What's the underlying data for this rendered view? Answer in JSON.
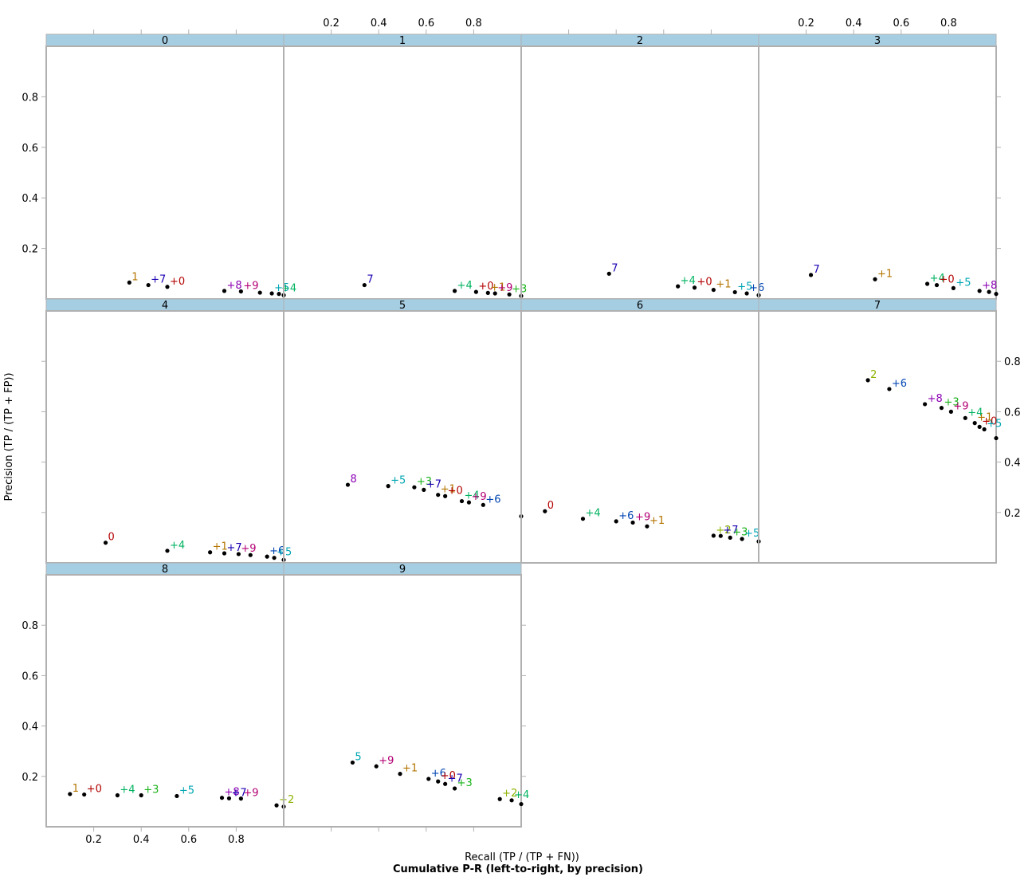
{
  "chart_data": {
    "type": "scatter",
    "title": "Cumulative P-R (left-to-right, by precision)",
    "xlabel": "Recall (TP / (TP + FN))",
    "ylabel": "Precision (TP / (TP + FP))",
    "xlim": [
      0,
      1
    ],
    "ylim": [
      0,
      1
    ],
    "x_ticks": [
      "0.2",
      "0.4",
      "0.6",
      "0.8"
    ],
    "y_ticks": [
      "0.2",
      "0.4",
      "0.6",
      "0.8"
    ],
    "grid": false,
    "legend": "none",
    "panel_strip_color": "#a6cee3",
    "label_colors": {
      "0": "#b30000",
      "1": "#b37400",
      "2": "#8cb300",
      "3": "#1ab31a",
      "4": "#00b360",
      "5": "#00a6b3",
      "6": "#0045b3",
      "7": "#1a00b3",
      "8": "#8c00b3",
      "9": "#b30074"
    },
    "panels": [
      {
        "name": "0",
        "points": [
          {
            "x": 0.35,
            "y": 0.065,
            "label": "1"
          },
          {
            "x": 0.43,
            "y": 0.055,
            "label": "+7"
          },
          {
            "x": 0.51,
            "y": 0.048,
            "label": "+0"
          },
          {
            "x": 0.75,
            "y": 0.032,
            "label": "+8"
          },
          {
            "x": 0.82,
            "y": 0.03,
            "label": "+9"
          },
          {
            "x": 0.9,
            "y": 0.025,
            "label": ""
          },
          {
            "x": 0.95,
            "y": 0.022,
            "label": "+5"
          },
          {
            "x": 0.98,
            "y": 0.02,
            "label": "+4"
          },
          {
            "x": 1.0,
            "y": 0.015,
            "label": ""
          }
        ]
      },
      {
        "name": "1",
        "points": [
          {
            "x": 0.34,
            "y": 0.055,
            "label": "7"
          },
          {
            "x": 0.72,
            "y": 0.032,
            "label": "+4"
          },
          {
            "x": 0.81,
            "y": 0.028,
            "label": "+0"
          },
          {
            "x": 0.86,
            "y": 0.024,
            "label": "+1"
          },
          {
            "x": 0.89,
            "y": 0.022,
            "label": "+9"
          },
          {
            "x": 0.95,
            "y": 0.018,
            "label": "+3"
          },
          {
            "x": 1.0,
            "y": 0.012,
            "label": ""
          }
        ]
      },
      {
        "name": "2",
        "points": [
          {
            "x": 0.37,
            "y": 0.1,
            "label": "7"
          },
          {
            "x": 0.66,
            "y": 0.05,
            "label": "+4"
          },
          {
            "x": 0.73,
            "y": 0.045,
            "label": "+0"
          },
          {
            "x": 0.81,
            "y": 0.036,
            "label": "+1"
          },
          {
            "x": 0.9,
            "y": 0.027,
            "label": "+5"
          },
          {
            "x": 0.95,
            "y": 0.022,
            "label": "+6"
          },
          {
            "x": 1.0,
            "y": 0.015,
            "label": ""
          }
        ]
      },
      {
        "name": "3",
        "points": [
          {
            "x": 0.22,
            "y": 0.095,
            "label": "7"
          },
          {
            "x": 0.49,
            "y": 0.078,
            "label": "+1"
          },
          {
            "x": 0.71,
            "y": 0.06,
            "label": "+4"
          },
          {
            "x": 0.75,
            "y": 0.055,
            "label": "+0"
          },
          {
            "x": 0.82,
            "y": 0.043,
            "label": "+5"
          },
          {
            "x": 0.93,
            "y": 0.032,
            "label": "+8"
          },
          {
            "x": 0.97,
            "y": 0.028,
            "label": ""
          },
          {
            "x": 1.0,
            "y": 0.02,
            "label": ""
          }
        ]
      },
      {
        "name": "4",
        "points": [
          {
            "x": 0.25,
            "y": 0.08,
            "label": "0"
          },
          {
            "x": 0.51,
            "y": 0.048,
            "label": "+4"
          },
          {
            "x": 0.69,
            "y": 0.042,
            "label": "+1"
          },
          {
            "x": 0.75,
            "y": 0.038,
            "label": "+7"
          },
          {
            "x": 0.81,
            "y": 0.035,
            "label": "+9"
          },
          {
            "x": 0.86,
            "y": 0.031,
            "label": ""
          },
          {
            "x": 0.93,
            "y": 0.025,
            "label": "+6"
          },
          {
            "x": 0.96,
            "y": 0.02,
            "label": "+5"
          },
          {
            "x": 1.0,
            "y": 0.012,
            "label": ""
          }
        ]
      },
      {
        "name": "5",
        "points": [
          {
            "x": 0.27,
            "y": 0.31,
            "label": "8"
          },
          {
            "x": 0.44,
            "y": 0.305,
            "label": "+5"
          },
          {
            "x": 0.55,
            "y": 0.3,
            "label": "+3"
          },
          {
            "x": 0.59,
            "y": 0.29,
            "label": "+7"
          },
          {
            "x": 0.65,
            "y": 0.27,
            "label": "+1"
          },
          {
            "x": 0.68,
            "y": 0.265,
            "label": "+0"
          },
          {
            "x": 0.75,
            "y": 0.245,
            "label": "+4"
          },
          {
            "x": 0.78,
            "y": 0.24,
            "label": "+9"
          },
          {
            "x": 0.84,
            "y": 0.23,
            "label": "+6"
          },
          {
            "x": 1.0,
            "y": 0.185,
            "label": ""
          }
        ]
      },
      {
        "name": "6",
        "points": [
          {
            "x": 0.1,
            "y": 0.205,
            "label": "0"
          },
          {
            "x": 0.26,
            "y": 0.175,
            "label": "+4"
          },
          {
            "x": 0.4,
            "y": 0.165,
            "label": "+6"
          },
          {
            "x": 0.47,
            "y": 0.16,
            "label": "+9"
          },
          {
            "x": 0.53,
            "y": 0.145,
            "label": "+1"
          },
          {
            "x": 0.81,
            "y": 0.108,
            "label": "+2"
          },
          {
            "x": 0.84,
            "y": 0.107,
            "label": "+7"
          },
          {
            "x": 0.88,
            "y": 0.1,
            "label": "+3"
          },
          {
            "x": 0.93,
            "y": 0.095,
            "label": "+5"
          },
          {
            "x": 1.0,
            "y": 0.085,
            "label": ""
          }
        ]
      },
      {
        "name": "7",
        "points": [
          {
            "x": 0.46,
            "y": 0.725,
            "label": "2"
          },
          {
            "x": 0.55,
            "y": 0.69,
            "label": "+6"
          },
          {
            "x": 0.7,
            "y": 0.63,
            "label": "+8"
          },
          {
            "x": 0.77,
            "y": 0.615,
            "label": "+3"
          },
          {
            "x": 0.81,
            "y": 0.6,
            "label": "+9"
          },
          {
            "x": 0.87,
            "y": 0.575,
            "label": "+4"
          },
          {
            "x": 0.91,
            "y": 0.555,
            "label": "+1"
          },
          {
            "x": 0.93,
            "y": 0.54,
            "label": "+0"
          },
          {
            "x": 0.95,
            "y": 0.53,
            "label": "+5"
          },
          {
            "x": 1.0,
            "y": 0.495,
            "label": ""
          }
        ]
      },
      {
        "name": "8",
        "points": [
          {
            "x": 0.1,
            "y": 0.13,
            "label": "1"
          },
          {
            "x": 0.16,
            "y": 0.128,
            "label": "+0"
          },
          {
            "x": 0.3,
            "y": 0.125,
            "label": "+4"
          },
          {
            "x": 0.4,
            "y": 0.125,
            "label": "+3"
          },
          {
            "x": 0.55,
            "y": 0.122,
            "label": "+5"
          },
          {
            "x": 0.74,
            "y": 0.115,
            "label": "+8"
          },
          {
            "x": 0.77,
            "y": 0.113,
            "label": "+7"
          },
          {
            "x": 0.82,
            "y": 0.112,
            "label": "+9"
          },
          {
            "x": 0.97,
            "y": 0.085,
            "label": "+2"
          },
          {
            "x": 1.0,
            "y": 0.08,
            "label": ""
          }
        ]
      },
      {
        "name": "9",
        "points": [
          {
            "x": 0.29,
            "y": 0.255,
            "label": "5"
          },
          {
            "x": 0.39,
            "y": 0.24,
            "label": "+9"
          },
          {
            "x": 0.49,
            "y": 0.21,
            "label": "+1"
          },
          {
            "x": 0.61,
            "y": 0.19,
            "label": "+6"
          },
          {
            "x": 0.65,
            "y": 0.18,
            "label": "+0"
          },
          {
            "x": 0.68,
            "y": 0.17,
            "label": "+7"
          },
          {
            "x": 0.72,
            "y": 0.152,
            "label": "+3"
          },
          {
            "x": 0.91,
            "y": 0.11,
            "label": "+2"
          },
          {
            "x": 0.96,
            "y": 0.105,
            "label": "+4"
          },
          {
            "x": 1.0,
            "y": 0.09,
            "label": ""
          }
        ]
      }
    ]
  }
}
